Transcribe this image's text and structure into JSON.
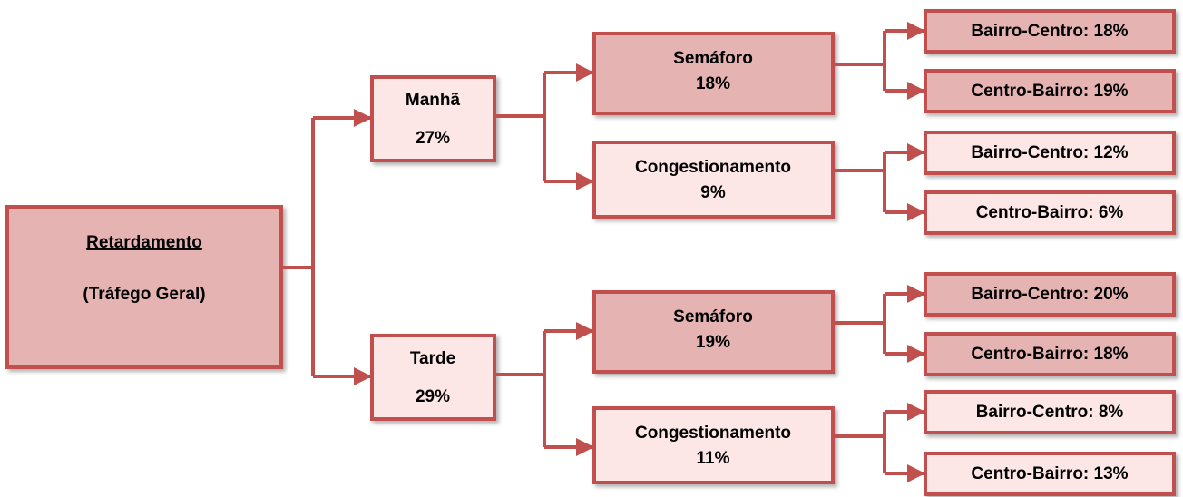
{
  "root": {
    "title": "Retardamento",
    "subtitle": "(Tráfego Geral)"
  },
  "branches": [
    {
      "label": "Manhã",
      "value": "27%",
      "children": [
        {
          "label": "Semáforo",
          "value": "18%",
          "children": [
            "Bairro-Centro: 18%",
            "Centro-Bairro: 19%"
          ]
        },
        {
          "label": "Congestionamento",
          "value": "9%",
          "children": [
            "Bairro-Centro: 12%",
            "Centro-Bairro: 6%"
          ]
        }
      ]
    },
    {
      "label": "Tarde",
      "value": "29%",
      "children": [
        {
          "label": "Semáforo",
          "value": "19%",
          "children": [
            "Bairro-Centro: 20%",
            "Centro-Bairro: 18%"
          ]
        },
        {
          "label": "Congestionamento",
          "value": "11%",
          "children": [
            "Bairro-Centro: 8%",
            "Centro-Bairro: 13%"
          ]
        }
      ]
    }
  ]
}
